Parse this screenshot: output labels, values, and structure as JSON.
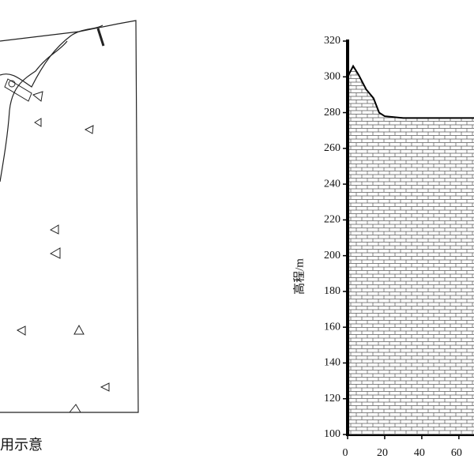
{
  "left_figure": {
    "caption": "用示意"
  },
  "chart_data": {
    "type": "area",
    "ylabel": "高程/m",
    "x": [
      0,
      3,
      6,
      10,
      14,
      17,
      20,
      30,
      40,
      50,
      60,
      69
    ],
    "values": [
      300,
      306,
      301,
      293,
      288,
      280,
      278,
      277,
      277,
      277,
      277,
      277
    ],
    "color": "#000000",
    "xlim": [
      0,
      69
    ],
    "ylim": [
      100,
      320
    ],
    "xticks": [
      0,
      20,
      40,
      60
    ],
    "yticks": [
      100,
      120,
      140,
      160,
      180,
      200,
      220,
      240,
      260,
      280,
      300,
      320
    ]
  }
}
